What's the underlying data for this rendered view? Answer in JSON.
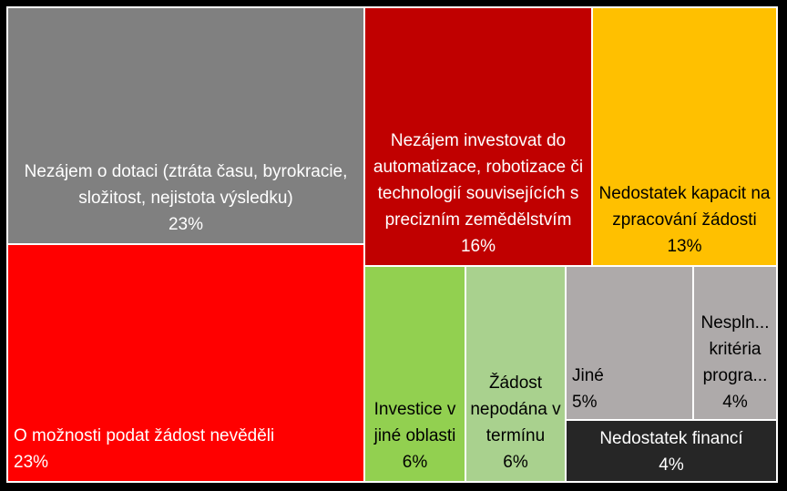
{
  "chart_data": {
    "type": "treemap",
    "unit": "%",
    "items": [
      {
        "label": "Nezájem o dotaci (ztráta času, byrokracie, složitost, nejistota výsledku)",
        "value": 23,
        "value_label": "23%",
        "color": "#808080",
        "text_color": "#ffffff"
      },
      {
        "label": "O možnosti podat žádost nevěděli",
        "value": 23,
        "value_label": "23%",
        "color": "#ff0000",
        "text_color": "#ffffff"
      },
      {
        "label": "Nezájem investovat do automatizace, robotizace či technologií souvisejících s precizním zemědělstvím",
        "value": 16,
        "value_label": "16%",
        "color": "#c00000",
        "text_color": "#ffffff"
      },
      {
        "label": "Nedostatek kapacit na zpracování žádosti",
        "value": 13,
        "value_label": "13%",
        "color": "#ffc000",
        "text_color": "#000000"
      },
      {
        "label": "Investice v jiné oblasti",
        "value": 6,
        "value_label": "6%",
        "color": "#92d050",
        "text_color": "#000000"
      },
      {
        "label": "Žádost nepodána v termínu",
        "value": 6,
        "value_label": "6%",
        "color": "#a9d18e",
        "text_color": "#000000"
      },
      {
        "label": "Jiné",
        "value": 5,
        "value_label": "5%",
        "color": "#aeaaaa",
        "text_color": "#000000"
      },
      {
        "label": "Nesplněná kritéria programu",
        "display_label": "Nespln... kritéria progra...",
        "value": 4,
        "value_label": "4%",
        "color": "#aeaaaa",
        "text_color": "#000000"
      },
      {
        "label": "Nedostatek financí",
        "value": 4,
        "value_label": "4%",
        "color": "#262626",
        "text_color": "#ffffff"
      }
    ]
  }
}
